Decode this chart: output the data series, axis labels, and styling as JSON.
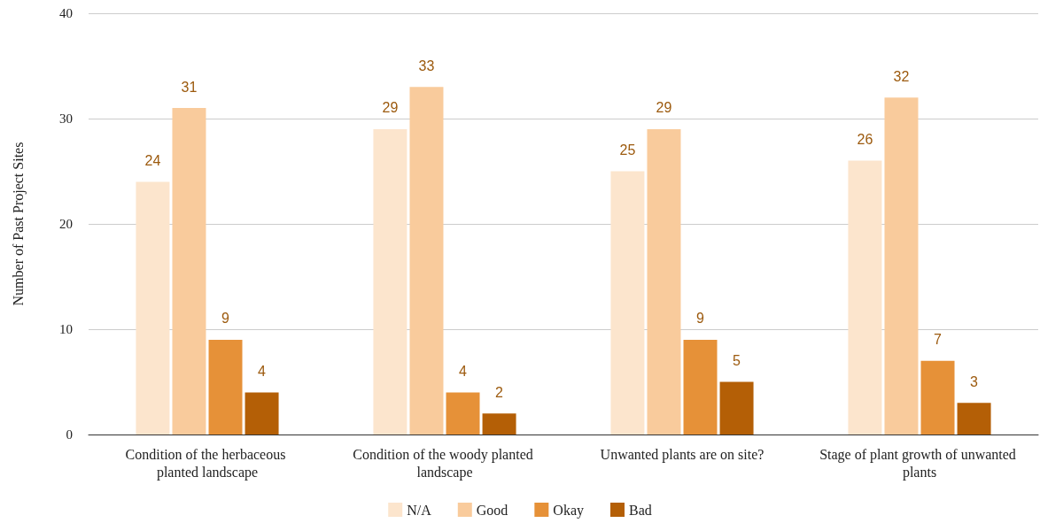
{
  "chart_data": {
    "type": "bar",
    "ylabel": "Number of Past Project Sites",
    "categories": [
      "Condition of the herbaceous planted landscape",
      "Condition of the woody planted landscape",
      "Unwanted plants are on site?",
      "Stage of plant growth of unwanted plants"
    ],
    "series": [
      {
        "name": "N/A",
        "color": "#fce5cd",
        "values": [
          24,
          29,
          25,
          26
        ]
      },
      {
        "name": "Good",
        "color": "#f9cb9c",
        "values": [
          31,
          33,
          29,
          32
        ]
      },
      {
        "name": "Okay",
        "color": "#e69138",
        "values": [
          9,
          4,
          9,
          7
        ]
      },
      {
        "name": "Bad",
        "color": "#b45f06",
        "values": [
          4,
          2,
          5,
          3
        ]
      }
    ],
    "ylim": [
      0,
      40
    ],
    "yticks": [
      0,
      10,
      20,
      30,
      40
    ],
    "grid": "y",
    "legend": "bottom",
    "data_labels": true
  }
}
